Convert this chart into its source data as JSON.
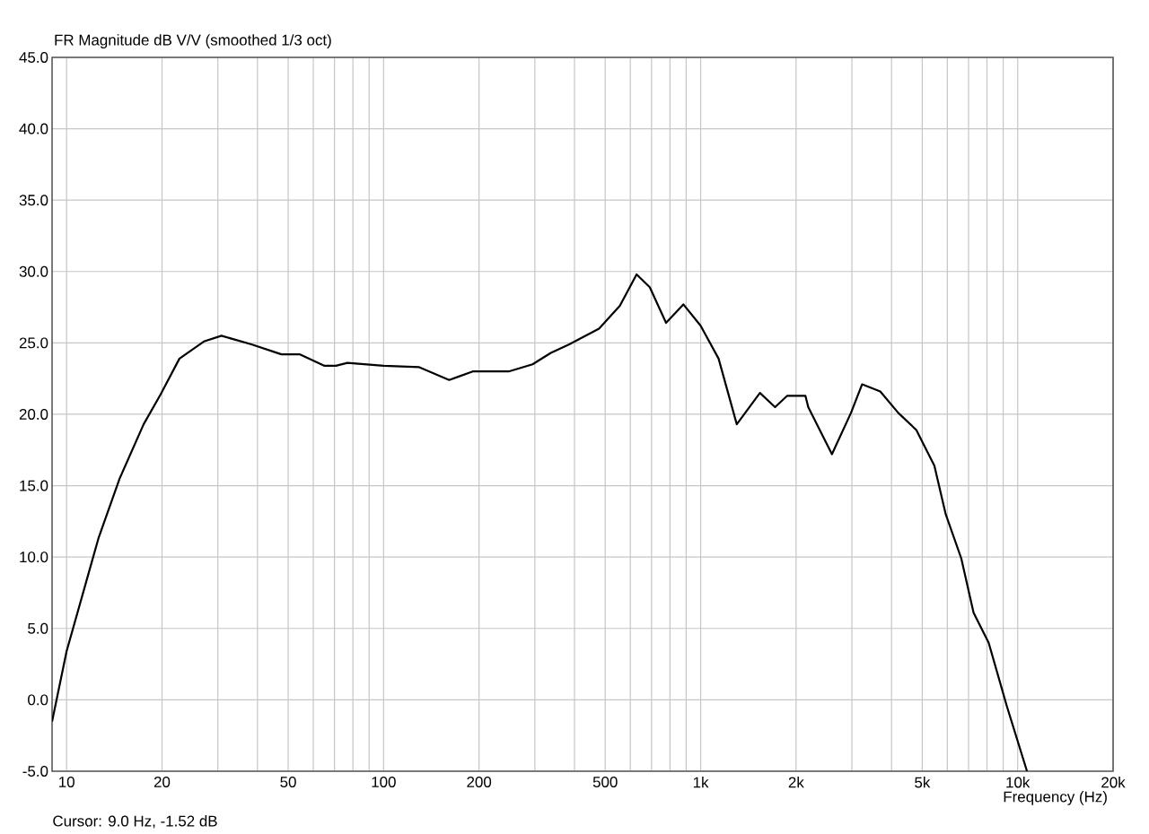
{
  "chart_data": {
    "type": "line",
    "title": "FR Magnitude dB V/V (smoothed 1/3 oct)",
    "xlabel": "Frequency (Hz)",
    "annotations": [
      "Cursor: 9.0 Hz, -1.52 dB"
    ],
    "log": "x",
    "grid": true,
    "color": "#000000",
    "line_style": "solid",
    "marker": "none",
    "xlim": [
      9,
      20000
    ],
    "ylim": [
      -5,
      45
    ],
    "xticks": [
      10,
      20,
      {
        "value": 30,
        "label": null
      },
      {
        "value": 40,
        "label": null
      },
      50,
      {
        "value": 60,
        "label": null
      },
      {
        "value": 70,
        "label": null
      },
      {
        "value": 80,
        "label": null
      },
      {
        "value": 90,
        "label": null
      },
      100,
      200,
      {
        "value": 300,
        "label": null
      },
      {
        "value": 400,
        "label": null
      },
      500,
      {
        "value": 600,
        "label": null
      },
      {
        "value": 700,
        "label": null
      },
      {
        "value": 800,
        "label": null
      },
      {
        "value": 900,
        "label": null
      },
      {
        "value": 1000,
        "label": "1k"
      },
      {
        "value": 2000,
        "label": "2k"
      },
      {
        "value": 3000,
        "label": null
      },
      {
        "value": 4000,
        "label": null
      },
      {
        "value": 5000,
        "label": "5k"
      },
      {
        "value": 6000,
        "label": null
      },
      {
        "value": 7000,
        "label": null
      },
      {
        "value": 8000,
        "label": null
      },
      {
        "value": 9000,
        "label": null
      },
      {
        "value": 10000,
        "label": "10k"
      },
      {
        "value": 20000,
        "label": "20k"
      }
    ],
    "yticks": [
      {
        "value": -5,
        "label": "-5.0"
      },
      {
        "value": 0,
        "label": "0.0"
      },
      {
        "value": 5,
        "label": "5.0"
      },
      {
        "value": 10,
        "label": "10.0"
      },
      {
        "value": 15,
        "label": "15.0"
      },
      {
        "value": 20,
        "label": "20.0"
      },
      {
        "value": 25,
        "label": "25.0"
      },
      {
        "value": 30,
        "label": "30.0"
      },
      {
        "value": 35,
        "label": "35.0"
      },
      {
        "value": 40,
        "label": "40.0"
      },
      {
        "value": 45,
        "label": "45.0"
      }
    ],
    "x": [
      9.0,
      10,
      11.85,
      12.6,
      14.7,
      17.5,
      19.8,
      22.7,
      27.1,
      30.8,
      38.3,
      47.6,
      54.3,
      64.9,
      70.7,
      76.9,
      100,
      129.5,
      161,
      191,
      248,
      295,
      337,
      385,
      478,
      556,
      628,
      691,
      778,
      882,
      1000,
      1139,
      1300,
      1538,
      1717,
      1876,
      2140,
      2185,
      2595,
      2980,
      3230,
      3686,
      4200,
      4790,
      5460,
      5930,
      6640,
      7260,
      8100,
      9230,
      10700
    ],
    "values": [
      -1.52,
      3.4,
      9.2,
      11.3,
      15.5,
      19.3,
      21.4,
      23.9,
      25.1,
      25.5,
      24.9,
      24.2,
      24.2,
      23.4,
      23.4,
      23.6,
      23.4,
      23.3,
      22.4,
      23.0,
      23.0,
      23.5,
      24.3,
      24.9,
      26.0,
      27.6,
      29.8,
      28.9,
      26.4,
      27.7,
      26.2,
      23.9,
      19.3,
      21.5,
      20.5,
      21.3,
      21.3,
      20.5,
      17.2,
      20.1,
      22.1,
      21.6,
      20.1,
      18.9,
      16.4,
      13.0,
      9.9,
      6.1,
      4.0,
      -0.4,
      -5.0
    ]
  }
}
